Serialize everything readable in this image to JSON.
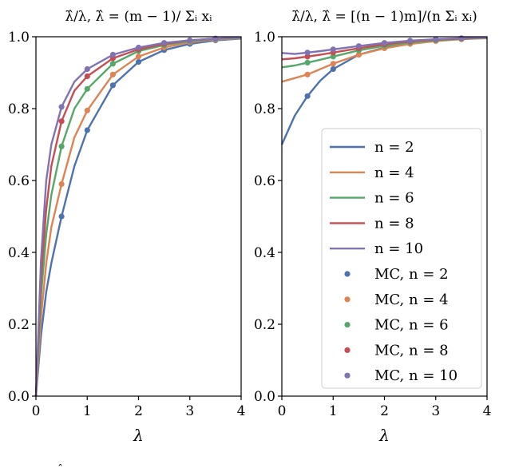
{
  "chart_data": [
    {
      "type": "line",
      "title": "λ̂/λ, λ̂ = (m − 1)/ Σᵢ xᵢ",
      "xlabel": "λ",
      "ylabel": "",
      "xlim": [
        0,
        4
      ],
      "ylim": [
        0,
        1
      ],
      "x_ticks": [
        "0",
        "1",
        "2",
        "3",
        "4"
      ],
      "y_ticks": [
        "0.0",
        "0.2",
        "0.4",
        "0.6",
        "0.8",
        "1.0"
      ],
      "grid": false,
      "series": [
        {
          "name": "n = 2",
          "color": "#4c72b0",
          "x": [
            0,
            0.1,
            0.2,
            0.3,
            0.5,
            0.75,
            1.0,
            1.5,
            2.0,
            2.5,
            3.0,
            3.5,
            4.0
          ],
          "values": [
            0,
            0.17,
            0.29,
            0.37,
            0.5,
            0.64,
            0.74,
            0.865,
            0.93,
            0.963,
            0.98,
            0.99,
            0.995
          ]
        },
        {
          "name": "n = 4",
          "color": "#dd8452",
          "x": [
            0,
            0.1,
            0.2,
            0.3,
            0.5,
            0.75,
            1.0,
            1.5,
            2.0,
            2.5,
            3.0,
            3.5,
            4.0
          ],
          "values": [
            0,
            0.22,
            0.37,
            0.47,
            0.59,
            0.72,
            0.795,
            0.895,
            0.945,
            0.97,
            0.985,
            0.992,
            0.996
          ]
        },
        {
          "name": "n = 6",
          "color": "#55a868",
          "x": [
            0,
            0.1,
            0.2,
            0.3,
            0.5,
            0.75,
            1.0,
            1.5,
            2.0,
            2.5,
            3.0,
            3.5,
            4.0
          ],
          "values": [
            0,
            0.28,
            0.45,
            0.56,
            0.695,
            0.8,
            0.855,
            0.925,
            0.96,
            0.977,
            0.988,
            0.994,
            0.997
          ]
        },
        {
          "name": "n = 8",
          "color": "#c44e52",
          "x": [
            0,
            0.1,
            0.2,
            0.3,
            0.5,
            0.75,
            1.0,
            1.5,
            2.0,
            2.5,
            3.0,
            3.5,
            4.0
          ],
          "values": [
            0,
            0.33,
            0.52,
            0.64,
            0.765,
            0.85,
            0.89,
            0.94,
            0.965,
            0.98,
            0.99,
            0.995,
            0.998
          ]
        },
        {
          "name": "n = 10",
          "color": "#8172b3",
          "x": [
            0,
            0.1,
            0.2,
            0.3,
            0.5,
            0.75,
            1.0,
            1.5,
            2.0,
            2.5,
            3.0,
            3.5,
            4.0
          ],
          "values": [
            0,
            0.38,
            0.6,
            0.7,
            0.805,
            0.875,
            0.91,
            0.95,
            0.97,
            0.983,
            0.99,
            0.995,
            0.998
          ]
        }
      ],
      "mc_points": [
        {
          "name": "MC, n = 2",
          "color": "#4c72b0",
          "x": [
            0.5,
            1.0,
            1.5,
            2.0,
            2.5,
            3.0,
            3.5
          ],
          "values": [
            0.5,
            0.74,
            0.865,
            0.93,
            0.963,
            0.98,
            0.99
          ]
        },
        {
          "name": "MC, n = 4",
          "color": "#dd8452",
          "x": [
            0.5,
            1.0,
            1.5,
            2.0,
            2.5,
            3.0,
            3.5
          ],
          "values": [
            0.59,
            0.795,
            0.895,
            0.945,
            0.97,
            0.985,
            0.992
          ]
        },
        {
          "name": "MC, n = 6",
          "color": "#55a868",
          "x": [
            0.5,
            1.0,
            1.5,
            2.0,
            2.5,
            3.0,
            3.5
          ],
          "values": [
            0.695,
            0.855,
            0.925,
            0.96,
            0.977,
            0.988,
            0.994
          ]
        },
        {
          "name": "MC, n = 8",
          "color": "#c44e52",
          "x": [
            0.5,
            1.0,
            1.5,
            2.0,
            2.5,
            3.0,
            3.5
          ],
          "values": [
            0.765,
            0.89,
            0.94,
            0.965,
            0.98,
            0.99,
            0.995
          ]
        },
        {
          "name": "MC, n = 10",
          "color": "#8172b3",
          "x": [
            0.5,
            1.0,
            1.5,
            2.0,
            2.5,
            3.0,
            3.5
          ],
          "values": [
            0.805,
            0.91,
            0.95,
            0.97,
            0.983,
            0.99,
            0.995
          ]
        }
      ]
    },
    {
      "type": "line",
      "title": "λ̂/λ, λ̂ = [(n − 1)m]/(n Σᵢ xᵢ)",
      "xlabel": "λ",
      "ylabel": "",
      "xlim": [
        0,
        4
      ],
      "ylim": [
        0,
        1
      ],
      "x_ticks": [
        "0",
        "1",
        "2",
        "3",
        "4"
      ],
      "y_ticks": [
        "0.0",
        "0.2",
        "0.4",
        "0.6",
        "0.8",
        "1.0"
      ],
      "grid": false,
      "legend": "center-right",
      "series": [
        {
          "name": "n = 2",
          "color": "#4c72b0",
          "x": [
            0,
            0.25,
            0.5,
            0.75,
            1.0,
            1.5,
            2.0,
            2.5,
            3.0,
            3.5,
            4.0
          ],
          "values": [
            0.7,
            0.78,
            0.835,
            0.878,
            0.91,
            0.95,
            0.97,
            0.982,
            0.99,
            0.994,
            0.997
          ]
        },
        {
          "name": "n = 4",
          "color": "#dd8452",
          "x": [
            0,
            0.25,
            0.5,
            0.75,
            1.0,
            1.5,
            2.0,
            2.5,
            3.0,
            3.5,
            4.0
          ],
          "values": [
            0.875,
            0.885,
            0.895,
            0.91,
            0.925,
            0.95,
            0.968,
            0.98,
            0.988,
            0.993,
            0.996
          ]
        },
        {
          "name": "n = 6",
          "color": "#55a868",
          "x": [
            0,
            0.25,
            0.5,
            0.75,
            1.0,
            1.5,
            2.0,
            2.5,
            3.0,
            3.5,
            4.0
          ],
          "values": [
            0.915,
            0.92,
            0.928,
            0.936,
            0.945,
            0.962,
            0.975,
            0.984,
            0.99,
            0.994,
            0.997
          ]
        },
        {
          "name": "n = 8",
          "color": "#c44e52",
          "x": [
            0,
            0.25,
            0.5,
            0.75,
            1.0,
            1.5,
            2.0,
            2.5,
            3.0,
            3.5,
            4.0
          ],
          "values": [
            0.937,
            0.94,
            0.945,
            0.95,
            0.956,
            0.968,
            0.979,
            0.987,
            0.992,
            0.995,
            0.998
          ]
        },
        {
          "name": "n = 10",
          "color": "#8172b3",
          "x": [
            0,
            0.25,
            0.5,
            0.75,
            1.0,
            1.5,
            2.0,
            2.5,
            3.0,
            3.5,
            4.0
          ],
          "values": [
            0.955,
            0.952,
            0.956,
            0.96,
            0.965,
            0.974,
            0.983,
            0.989,
            0.993,
            0.996,
            0.998
          ]
        }
      ],
      "mc_points": [
        {
          "name": "MC, n = 2",
          "color": "#4c72b0",
          "x": [
            0.5,
            1.0,
            1.5,
            2.0,
            2.5,
            3.0,
            3.5
          ],
          "values": [
            0.835,
            0.91,
            0.95,
            0.97,
            0.982,
            0.99,
            0.994
          ]
        },
        {
          "name": "MC, n = 4",
          "color": "#dd8452",
          "x": [
            0.5,
            1.0,
            1.5,
            2.0,
            2.5,
            3.0,
            3.5
          ],
          "values": [
            0.895,
            0.925,
            0.95,
            0.968,
            0.98,
            0.988,
            0.993
          ]
        },
        {
          "name": "MC, n = 6",
          "color": "#55a868",
          "x": [
            0.5,
            1.0,
            1.5,
            2.0,
            2.5,
            3.0,
            3.5
          ],
          "values": [
            0.928,
            0.945,
            0.962,
            0.975,
            0.984,
            0.99,
            0.994
          ]
        },
        {
          "name": "MC, n = 8",
          "color": "#c44e52",
          "x": [
            0.5,
            1.0,
            1.5,
            2.0,
            2.5,
            3.0,
            3.5
          ],
          "values": [
            0.945,
            0.956,
            0.968,
            0.979,
            0.987,
            0.992,
            0.995
          ]
        },
        {
          "name": "MC, n = 10",
          "color": "#8172b3",
          "x": [
            0.5,
            1.0,
            1.5,
            2.0,
            2.5,
            3.0,
            3.5
          ],
          "values": [
            0.956,
            0.965,
            0.974,
            0.983,
            0.989,
            0.993,
            0.996
          ]
        }
      ]
    }
  ],
  "caption_fragment": "ˆ"
}
